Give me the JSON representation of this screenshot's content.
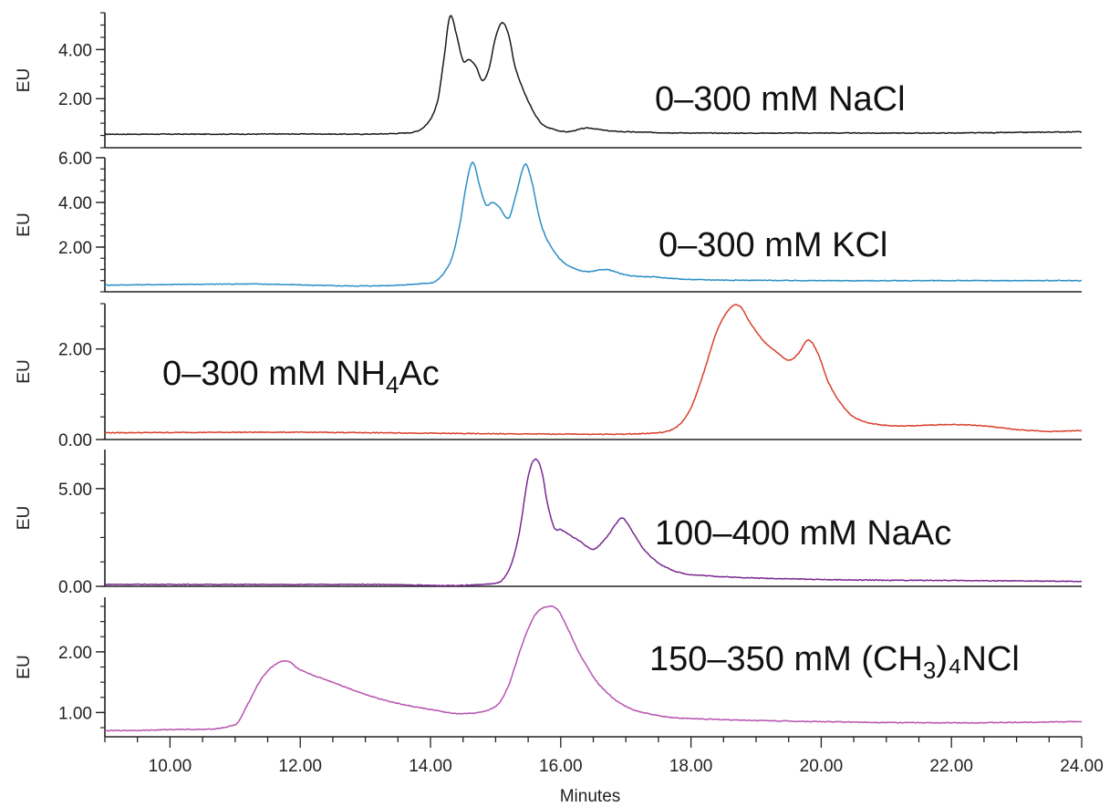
{
  "chart_data": {
    "type": "line",
    "xlabel": "Minutes",
    "xlim": [
      9,
      24
    ],
    "xticks": [
      10,
      12,
      14,
      16,
      18,
      20,
      22,
      24
    ],
    "xtick_labels": [
      "10.00",
      "12.00",
      "14.00",
      "16.00",
      "18.00",
      "20.00",
      "22.00",
      "24.00"
    ],
    "panels": [
      {
        "ylabel": "EU",
        "ylim": [
          0,
          5.5
        ],
        "yticks": [
          2,
          4
        ],
        "ytick_labels": [
          "2.00",
          "4.00"
        ],
        "color": "#1a1a1a",
        "annotation": {
          "main": "0–300 mM NaCl",
          "sub": "",
          "tail": ""
        },
        "series": {
          "x": [
            9.0,
            12.0,
            13.6,
            13.9,
            14.1,
            14.2,
            14.3,
            14.4,
            14.5,
            14.6,
            14.7,
            14.8,
            14.9,
            15.0,
            15.1,
            15.2,
            15.3,
            15.5,
            15.7,
            15.9,
            16.1,
            16.4,
            16.7,
            17.0,
            18.0,
            20.0,
            22.0,
            24.0
          ],
          "y": [
            0.55,
            0.56,
            0.6,
            0.85,
            1.8,
            3.5,
            5.35,
            4.6,
            3.55,
            3.6,
            3.3,
            2.75,
            3.25,
            4.5,
            5.1,
            4.6,
            3.3,
            1.9,
            1.0,
            0.75,
            0.65,
            0.8,
            0.7,
            0.65,
            0.6,
            0.6,
            0.6,
            0.65
          ]
        }
      },
      {
        "ylabel": "EU",
        "ylim": [
          0,
          6.0
        ],
        "yticks": [
          2,
          4,
          6
        ],
        "ytick_labels": [
          "2.00",
          "4.00",
          "6.00"
        ],
        "color": "#2a8fc6",
        "annotation": {
          "main": "0–300 mM KCl",
          "sub": "",
          "tail": ""
        },
        "series": {
          "x": [
            9.0,
            11.0,
            14.0,
            14.3,
            14.45,
            14.55,
            14.65,
            14.75,
            14.85,
            14.95,
            15.05,
            15.2,
            15.3,
            15.45,
            15.55,
            15.7,
            15.9,
            16.1,
            16.4,
            16.7,
            17.0,
            17.5,
            18.0,
            20.0,
            22.0,
            24.0
          ],
          "y": [
            0.3,
            0.35,
            0.4,
            1.3,
            3.0,
            4.8,
            5.8,
            4.8,
            3.9,
            4.0,
            3.8,
            3.3,
            4.2,
            5.7,
            5.0,
            3.0,
            1.8,
            1.2,
            0.9,
            1.0,
            0.75,
            0.65,
            0.55,
            0.5,
            0.5,
            0.5
          ]
        }
      },
      {
        "ylabel": "EU",
        "ylim": [
          0,
          3.0
        ],
        "yticks": [
          0,
          2
        ],
        "ytick_labels": [
          "0.00",
          "2.00"
        ],
        "color": "#d9402b",
        "annotation": {
          "main": "0–300 mM NH",
          "sub": "4",
          "tail": "Ac"
        },
        "series": {
          "x": [
            9.0,
            12.0,
            16.0,
            17.5,
            17.8,
            18.0,
            18.2,
            18.4,
            18.6,
            18.75,
            18.9,
            19.1,
            19.3,
            19.5,
            19.65,
            19.8,
            19.95,
            20.1,
            20.3,
            20.5,
            20.8,
            21.2,
            22.0,
            22.5,
            23.0,
            23.5,
            24.0
          ],
          "y": [
            0.15,
            0.16,
            0.12,
            0.15,
            0.3,
            0.7,
            1.5,
            2.4,
            2.9,
            2.95,
            2.6,
            2.2,
            1.95,
            1.75,
            1.9,
            2.2,
            1.9,
            1.3,
            0.8,
            0.5,
            0.35,
            0.3,
            0.33,
            0.3,
            0.22,
            0.18,
            0.2
          ]
        }
      },
      {
        "ylabel": "EU",
        "ylim": [
          0,
          7.0
        ],
        "yticks": [
          0,
          5
        ],
        "ytick_labels": [
          "0.00",
          "5.00"
        ],
        "color": "#7a2890",
        "annotation": {
          "main": "100–400 mM NaAc",
          "sub": "",
          "tail": ""
        },
        "series": {
          "x": [
            9.0,
            13.0,
            15.0,
            15.2,
            15.35,
            15.5,
            15.6,
            15.7,
            15.8,
            15.9,
            16.0,
            16.15,
            16.3,
            16.5,
            16.7,
            16.85,
            16.95,
            17.1,
            17.3,
            17.6,
            18.0,
            20.0,
            22.0,
            24.0
          ],
          "y": [
            0.1,
            0.1,
            0.15,
            0.8,
            2.5,
            5.6,
            6.5,
            6.0,
            4.2,
            3.0,
            2.9,
            2.6,
            2.3,
            1.9,
            2.5,
            3.2,
            3.5,
            2.8,
            1.8,
            1.0,
            0.6,
            0.35,
            0.3,
            0.25
          ]
        }
      },
      {
        "ylabel": "EU",
        "ylim": [
          0.6,
          2.9
        ],
        "yticks": [
          1,
          2
        ],
        "ytick_labels": [
          "1.00",
          "2.00"
        ],
        "color": "#b753b0",
        "annotation": {
          "main": "150–350 mM (CH",
          "sub": "3",
          "tail": ")₄NCl"
        },
        "series": {
          "x": [
            9.0,
            10.0,
            11.0,
            11.2,
            11.4,
            11.6,
            11.8,
            12.0,
            12.5,
            13.0,
            13.5,
            14.0,
            14.5,
            15.0,
            15.2,
            15.4,
            15.6,
            15.8,
            15.95,
            16.1,
            16.3,
            16.6,
            17.0,
            17.5,
            18.0,
            20.0,
            22.0,
            24.0
          ],
          "y": [
            0.7,
            0.72,
            0.8,
            1.15,
            1.55,
            1.78,
            1.85,
            1.7,
            1.5,
            1.3,
            1.15,
            1.05,
            0.98,
            1.1,
            1.45,
            2.1,
            2.6,
            2.75,
            2.7,
            2.4,
            1.95,
            1.45,
            1.1,
            0.95,
            0.9,
            0.85,
            0.83,
            0.85
          ]
        }
      }
    ]
  }
}
